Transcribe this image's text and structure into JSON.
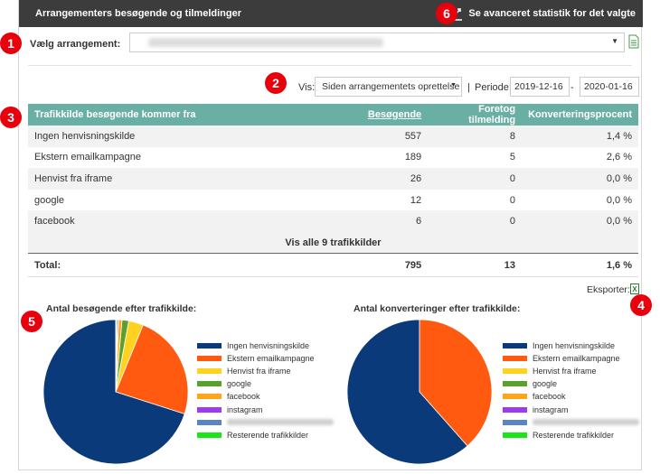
{
  "header": {
    "title": "Arrangementers besøgende og tilmeldinger",
    "advanced_link": "Se avanceret statistik for det valgte"
  },
  "event_select": {
    "label": "Vælg arrangement:"
  },
  "filter": {
    "vis_label": "Vis:",
    "vis_value": "Siden arrangementets oprettelse",
    "separator": "|",
    "periode_label": "Periode:",
    "date_from": "2019-12-16",
    "date_dash": "-",
    "date_to": "2020-01-16"
  },
  "table": {
    "headers": {
      "source": "Trafikkilde besøgende kommer fra",
      "visitors": "Besøgende",
      "signups": "Foretog tilmelding",
      "conversion": "Konverteringsprocent"
    },
    "rows": [
      {
        "source": "Ingen henvisningskilde",
        "visitors": "557",
        "signups": "8",
        "conversion": "1,4 %"
      },
      {
        "source": "Ekstern emailkampagne",
        "visitors": "189",
        "signups": "5",
        "conversion": "2,6 %"
      },
      {
        "source": "Henvist fra iframe",
        "visitors": "26",
        "signups": "0",
        "conversion": "0,0 %"
      },
      {
        "source": "google",
        "visitors": "12",
        "signups": "0",
        "conversion": "0,0 %"
      },
      {
        "source": "facebook",
        "visitors": "6",
        "signups": "0",
        "conversion": "0,0 %"
      }
    ],
    "show_all": "Vis alle 9 trafikkilder",
    "total": {
      "label": "Total:",
      "visitors": "795",
      "signups": "13",
      "conversion": "1,6 %"
    }
  },
  "export_label": "Eksporter:",
  "badges": [
    "1",
    "2",
    "3",
    "4",
    "5",
    "6"
  ],
  "legend_items": [
    {
      "label": "Ingen henvisningskilde",
      "color": "#0a3a7a"
    },
    {
      "label": "Ekstern emailkampagne",
      "color": "#ff5a0f"
    },
    {
      "label": "Henvist fra iframe",
      "color": "#ffd21f"
    },
    {
      "label": "google",
      "color": "#5aa02c"
    },
    {
      "label": "facebook",
      "color": "#ffa51a"
    },
    {
      "label": "instagram",
      "color": "#9b3cf0"
    },
    {
      "label": "",
      "color": "#5b84c4"
    },
    {
      "label": "Resterende trafikkilder",
      "color": "#19e619"
    }
  ],
  "chart_data": [
    {
      "type": "pie",
      "title": "Antal besøgende efter trafikkilde:",
      "categories": [
        "Ingen henvisningskilde",
        "Ekstern emailkampagne",
        "Henvist fra iframe",
        "google",
        "facebook",
        "instagram",
        "",
        "Resterende trafikkilder"
      ],
      "values": [
        557,
        189,
        26,
        12,
        6,
        2,
        2,
        1
      ],
      "colors": [
        "#0a3a7a",
        "#ff5a0f",
        "#ffd21f",
        "#5aa02c",
        "#ffa51a",
        "#9b3cf0",
        "#5b84c4",
        "#19e619"
      ],
      "legend": "right"
    },
    {
      "type": "pie",
      "title": "Antal konverteringer efter trafikkilde:",
      "categories": [
        "Ingen henvisningskilde",
        "Ekstern emailkampagne",
        "Henvist fra iframe",
        "google",
        "facebook",
        "instagram",
        "",
        "Resterende trafikkilder"
      ],
      "values": [
        8,
        5,
        0,
        0,
        0,
        0,
        0,
        0
      ],
      "colors": [
        "#0a3a7a",
        "#ff5a0f",
        "#ffd21f",
        "#5aa02c",
        "#ffa51a",
        "#9b3cf0",
        "#5b84c4",
        "#19e619"
      ],
      "legend": "right"
    }
  ]
}
